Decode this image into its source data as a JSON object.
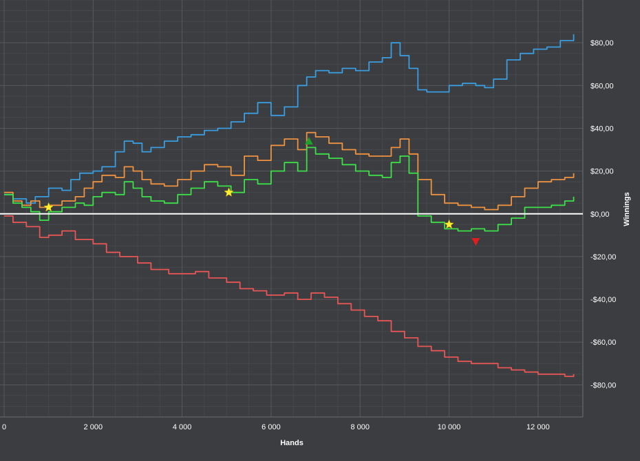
{
  "theme": {
    "background": "#3b3d40",
    "grid_major": "#55585c",
    "grid_minor": "#45484c",
    "axis_text": "#ffffff",
    "zero_line": "#ffffff"
  },
  "chart_data": {
    "type": "line",
    "xlabel": "Hands",
    "ylabel": "Winnings",
    "xlim": [
      0,
      13100
    ],
    "ylim": [
      -95,
      100
    ],
    "grid": true,
    "y_axis_side": "right",
    "x_ticks": [
      {
        "value": 0,
        "label": "0"
      },
      {
        "value": 2000,
        "label": "2 000"
      },
      {
        "value": 4000,
        "label": "4 000"
      },
      {
        "value": 6000,
        "label": "6 000"
      },
      {
        "value": 8000,
        "label": "8 000"
      },
      {
        "value": 10000,
        "label": "10 000"
      },
      {
        "value": 12000,
        "label": "12 000"
      }
    ],
    "y_ticks": [
      {
        "value": 80,
        "label": "$80,00"
      },
      {
        "value": 60,
        "label": "$60,00"
      },
      {
        "value": 40,
        "label": "$40,00"
      },
      {
        "value": 20,
        "label": "$20,00"
      },
      {
        "value": 0,
        "label": "$0,00"
      },
      {
        "value": -20,
        "label": "-$20,00"
      },
      {
        "value": -40,
        "label": "-$40,00"
      },
      {
        "value": -60,
        "label": "-$60,00"
      },
      {
        "value": -80,
        "label": "-$80,00"
      }
    ],
    "series": [
      {
        "color": "#3a9ee0",
        "x": [
          0,
          200,
          500,
          700,
          1000,
          1300,
          1500,
          1700,
          2000,
          2200,
          2500,
          2700,
          2900,
          3100,
          3300,
          3600,
          3900,
          4200,
          4500,
          4800,
          5100,
          5400,
          5700,
          6000,
          6300,
          6600,
          6800,
          7000,
          7300,
          7600,
          7900,
          8200,
          8500,
          8700,
          8900,
          9100,
          9300,
          9500,
          9800,
          10000,
          10300,
          10600,
          10800,
          11000,
          11300,
          11600,
          11900,
          12200,
          12500,
          12800
        ],
        "y": [
          9,
          7,
          5,
          8,
          12,
          11,
          16,
          19,
          20,
          22,
          29,
          34,
          33,
          29,
          31,
          34,
          36,
          37,
          39,
          40,
          43,
          47,
          52,
          46,
          50,
          60,
          64,
          67,
          66,
          68,
          67,
          71,
          73,
          80,
          74,
          68,
          58,
          57,
          57,
          60,
          61,
          60,
          59,
          63,
          72,
          75,
          77,
          78,
          81,
          84
        ]
      },
      {
        "color": "#ef9340",
        "x": [
          0,
          200,
          400,
          600,
          800,
          1000,
          1300,
          1600,
          1800,
          2000,
          2200,
          2500,
          2700,
          2900,
          3100,
          3300,
          3600,
          3900,
          4200,
          4500,
          4800,
          5100,
          5400,
          5700,
          6000,
          6300,
          6600,
          6800,
          7000,
          7300,
          7600,
          7900,
          8200,
          8500,
          8700,
          8900,
          9100,
          9300,
          9600,
          9900,
          10200,
          10500,
          10800,
          11100,
          11400,
          11700,
          12000,
          12300,
          12600,
          12800
        ],
        "y": [
          10,
          6,
          4,
          6,
          3,
          4,
          6,
          8,
          12,
          15,
          18,
          17,
          22,
          20,
          16,
          14,
          13,
          16,
          20,
          23,
          22,
          18,
          27,
          25,
          32,
          35,
          30,
          38,
          36,
          33,
          30,
          28,
          27,
          27,
          31,
          35,
          28,
          16,
          9,
          5,
          4,
          3,
          2,
          4,
          8,
          12,
          15,
          16,
          17,
          19
        ]
      },
      {
        "color": "#3ee04a",
        "x": [
          0,
          200,
          400,
          600,
          800,
          1000,
          1300,
          1600,
          1800,
          2000,
          2200,
          2500,
          2700,
          2900,
          3100,
          3300,
          3600,
          3900,
          4200,
          4500,
          4800,
          5100,
          5400,
          5700,
          6000,
          6300,
          6600,
          6800,
          7000,
          7300,
          7600,
          7900,
          8200,
          8500,
          8700,
          8900,
          9100,
          9300,
          9600,
          9900,
          10200,
          10500,
          10800,
          11100,
          11400,
          11700,
          12000,
          12300,
          12600,
          12800
        ],
        "y": [
          9,
          5,
          3,
          1,
          -3,
          1,
          3,
          5,
          4,
          8,
          10,
          9,
          15,
          12,
          8,
          6,
          5,
          9,
          12,
          15,
          13,
          10,
          16,
          14,
          20,
          24,
          20,
          31,
          28,
          26,
          23,
          20,
          18,
          17,
          24,
          27,
          19,
          -1,
          -4,
          -7,
          -8,
          -7,
          -8,
          -5,
          -2,
          3,
          3,
          4,
          6,
          8
        ]
      },
      {
        "color": "#e85656",
        "x": [
          0,
          200,
          500,
          800,
          1000,
          1300,
          1600,
          2000,
          2300,
          2600,
          3000,
          3300,
          3700,
          4000,
          4300,
          4600,
          5000,
          5300,
          5600,
          5900,
          6300,
          6600,
          6900,
          7200,
          7500,
          7800,
          8100,
          8400,
          8700,
          9000,
          9300,
          9600,
          9900,
          10200,
          10500,
          10800,
          11100,
          11400,
          11700,
          12000,
          12300,
          12600,
          12800
        ],
        "y": [
          -1,
          -4,
          -6,
          -11,
          -10,
          -8,
          -12,
          -14,
          -18,
          -20,
          -23,
          -26,
          -28,
          -28,
          -27,
          -30,
          -32,
          -35,
          -36,
          -38,
          -37,
          -40,
          -37,
          -39,
          -42,
          -45,
          -48,
          -50,
          -55,
          -58,
          -62,
          -64,
          -67,
          -69,
          -70,
          -70,
          -72,
          -73,
          -74,
          -75,
          -75,
          -76,
          -75
        ]
      }
    ],
    "markers": [
      {
        "type": "star",
        "color": "#ffee33",
        "x": 1000,
        "y": 3
      },
      {
        "type": "star",
        "color": "#ffee33",
        "x": 5050,
        "y": 10
      },
      {
        "type": "star",
        "color": "#ffee33",
        "x": 10000,
        "y": -5
      },
      {
        "type": "triangle-up",
        "color": "#1fa02a",
        "x": 6850,
        "y": 34
      },
      {
        "type": "triangle-down",
        "color": "#e01e1e",
        "x": 10600,
        "y": -13
      }
    ]
  }
}
